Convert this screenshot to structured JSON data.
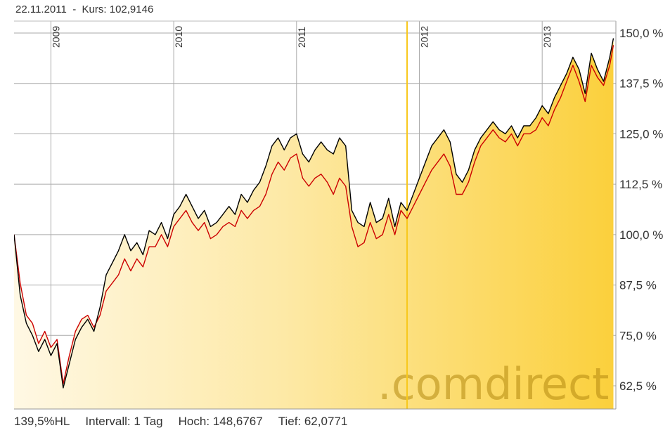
{
  "header": {
    "date": "22.11.2011",
    "separator": "-",
    "kurs_label": "Kurs:",
    "kurs_value": "102,9146"
  },
  "footer": {
    "scale": "139,5%HL",
    "interval": "Intervall: 1 Tag",
    "high": "Hoch: 148,6767",
    "low": "Tief: 62,0771"
  },
  "watermark": ".comdirect",
  "colors": {
    "series_black": "#000000",
    "series_red": "#cc0000",
    "fill_light": "#fff6dc",
    "fill_dark": "#fbd34a",
    "marker": "#f8c81c",
    "grid": "#aaaaaa"
  },
  "chart_data": {
    "type": "line",
    "x_tick_labels": [
      "2009",
      "2010",
      "2011",
      "2012",
      "2013"
    ],
    "y_tick_labels": [
      "150,0 %",
      "137,5 %",
      "125,0 %",
      "112,5 %",
      "100,0 %",
      "87,5 %",
      "75,0 %",
      "62,5 %"
    ],
    "y_ticks": [
      150,
      137.5,
      125,
      112.5,
      100,
      87.5,
      75,
      62.5
    ],
    "xlim": [
      2008.7,
      2013.6
    ],
    "ylim": [
      58.5,
      151.5
    ],
    "marker_x": 2011.9,
    "series": [
      {
        "color": "black",
        "x": [
          2008.7,
          2008.75,
          2008.8,
          2008.85,
          2008.9,
          2008.95,
          2009.0,
          2009.05,
          2009.1,
          2009.15,
          2009.2,
          2009.25,
          2009.3,
          2009.35,
          2009.4,
          2009.45,
          2009.5,
          2009.55,
          2009.6,
          2009.65,
          2009.7,
          2009.75,
          2009.8,
          2009.85,
          2009.9,
          2009.95,
          2010.0,
          2010.05,
          2010.1,
          2010.15,
          2010.2,
          2010.25,
          2010.3,
          2010.35,
          2010.4,
          2010.45,
          2010.5,
          2010.55,
          2010.6,
          2010.65,
          2010.7,
          2010.75,
          2010.8,
          2010.85,
          2010.9,
          2010.95,
          2011.0,
          2011.05,
          2011.1,
          2011.15,
          2011.2,
          2011.25,
          2011.3,
          2011.35,
          2011.4,
          2011.45,
          2011.5,
          2011.55,
          2011.6,
          2011.65,
          2011.7,
          2011.75,
          2011.8,
          2011.85,
          2011.9,
          2011.95,
          2012.0,
          2012.05,
          2012.1,
          2012.15,
          2012.2,
          2012.25,
          2012.3,
          2012.35,
          2012.4,
          2012.45,
          2012.5,
          2012.55,
          2012.6,
          2012.65,
          2012.7,
          2012.75,
          2012.8,
          2012.85,
          2012.9,
          2012.95,
          2013.0,
          2013.05,
          2013.1,
          2013.15,
          2013.2,
          2013.25,
          2013.3,
          2013.35,
          2013.4,
          2013.45,
          2013.5,
          2013.55,
          2013.58
        ],
        "y": [
          100,
          85,
          78,
          75,
          71,
          74,
          70,
          73,
          62,
          68,
          74,
          77,
          79,
          76,
          82,
          90,
          93,
          96,
          100,
          96,
          98,
          95,
          101,
          100,
          103,
          99,
          105,
          107,
          110,
          107,
          104,
          106,
          102,
          103,
          105,
          107,
          105,
          110,
          108,
          111,
          113,
          117,
          122,
          124,
          121,
          124,
          125,
          120,
          118,
          121,
          123,
          121,
          120,
          124,
          122,
          106,
          103,
          102,
          108,
          103,
          104,
          109,
          102,
          108,
          106,
          110,
          114,
          118,
          122,
          124,
          126,
          123,
          115,
          113,
          116,
          121,
          124,
          126,
          128,
          126,
          125,
          127,
          124,
          127,
          127,
          129,
          132,
          130,
          134,
          137,
          140,
          144,
          141,
          135,
          145,
          141,
          138,
          144,
          148.7
        ]
      },
      {
        "color": "red",
        "x": [
          2008.7,
          2008.75,
          2008.8,
          2008.85,
          2008.9,
          2008.95,
          2009.0,
          2009.05,
          2009.1,
          2009.15,
          2009.2,
          2009.25,
          2009.3,
          2009.35,
          2009.4,
          2009.45,
          2009.5,
          2009.55,
          2009.6,
          2009.65,
          2009.7,
          2009.75,
          2009.8,
          2009.85,
          2009.9,
          2009.95,
          2010.0,
          2010.05,
          2010.1,
          2010.15,
          2010.2,
          2010.25,
          2010.3,
          2010.35,
          2010.4,
          2010.45,
          2010.5,
          2010.55,
          2010.6,
          2010.65,
          2010.7,
          2010.75,
          2010.8,
          2010.85,
          2010.9,
          2010.95,
          2011.0,
          2011.05,
          2011.1,
          2011.15,
          2011.2,
          2011.25,
          2011.3,
          2011.35,
          2011.4,
          2011.45,
          2011.5,
          2011.55,
          2011.6,
          2011.65,
          2011.7,
          2011.75,
          2011.8,
          2011.85,
          2011.9,
          2011.95,
          2012.0,
          2012.05,
          2012.1,
          2012.15,
          2012.2,
          2012.25,
          2012.3,
          2012.35,
          2012.4,
          2012.45,
          2012.5,
          2012.55,
          2012.6,
          2012.65,
          2012.7,
          2012.75,
          2012.8,
          2012.85,
          2012.9,
          2012.95,
          2013.0,
          2013.05,
          2013.1,
          2013.15,
          2013.2,
          2013.25,
          2013.3,
          2013.35,
          2013.4,
          2013.45,
          2013.5,
          2013.55,
          2013.58
        ],
        "y": [
          100,
          88,
          80,
          78,
          73,
          76,
          72,
          74,
          63,
          70,
          76,
          79,
          80,
          77,
          80,
          86,
          88,
          90,
          94,
          91,
          94,
          92,
          97,
          97,
          100,
          97,
          102,
          104,
          106,
          103,
          101,
          103,
          99,
          100,
          102,
          103,
          102,
          106,
          104,
          106,
          107,
          110,
          115,
          118,
          116,
          119,
          120,
          114,
          112,
          114,
          115,
          113,
          110,
          114,
          112,
          102,
          97,
          98,
          103,
          99,
          100,
          105,
          100,
          106,
          104,
          107,
          110,
          113,
          116,
          118,
          120,
          117,
          110,
          110,
          113,
          118,
          122,
          124,
          126,
          124,
          123,
          125,
          122,
          125,
          125,
          126,
          129,
          127,
          131,
          134,
          138,
          142,
          138,
          133,
          142,
          139,
          137,
          142,
          147
        ]
      }
    ]
  }
}
